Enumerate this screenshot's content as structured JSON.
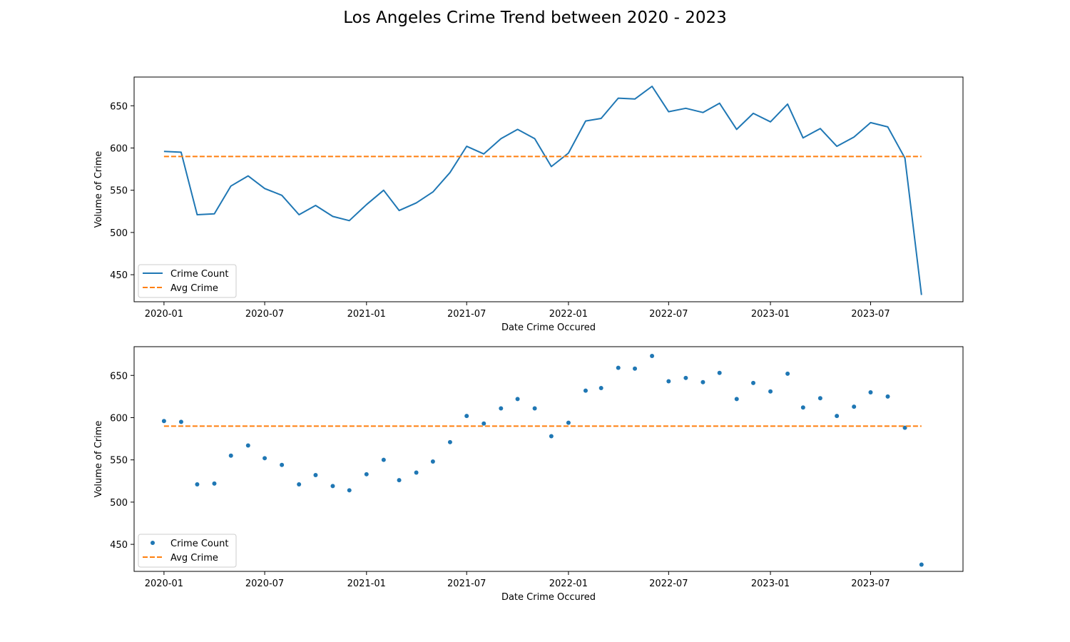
{
  "figure": {
    "title": "Los Angeles Crime Trend between 2020 - 2023"
  },
  "chart_data": [
    {
      "type": "line",
      "xlabel": "Date Crime Occured",
      "ylabel": "Volume of Crime",
      "x_tick_labels": [
        "2020-01",
        "2020-07",
        "2021-01",
        "2021-07",
        "2022-01",
        "2022-07",
        "2023-01",
        "2023-07"
      ],
      "y_ticks": [
        450,
        500,
        550,
        600,
        650
      ],
      "ylim": [
        418,
        684
      ],
      "xlim": [
        "2019-11-08",
        "2023-12-15"
      ],
      "legend": {
        "location": "lower-left",
        "entries": [
          "Crime Count",
          "Avg Crime"
        ]
      },
      "grid": false,
      "colors": {
        "crime_count": "#1f77b4",
        "avg_crime": "#ff7f0e"
      },
      "x": [
        "2020-01",
        "2020-02",
        "2020-03",
        "2020-04",
        "2020-05",
        "2020-06",
        "2020-07",
        "2020-08",
        "2020-09",
        "2020-10",
        "2020-11",
        "2020-12",
        "2021-01",
        "2021-02",
        "2021-03",
        "2021-04",
        "2021-05",
        "2021-06",
        "2021-07",
        "2021-08",
        "2021-09",
        "2021-10",
        "2021-11",
        "2021-12",
        "2022-01",
        "2022-02",
        "2022-03",
        "2022-04",
        "2022-05",
        "2022-06",
        "2022-07",
        "2022-08",
        "2022-09",
        "2022-10",
        "2022-11",
        "2022-12",
        "2023-01",
        "2023-02",
        "2023-03",
        "2023-04",
        "2023-05",
        "2023-06",
        "2023-07",
        "2023-08",
        "2023-09",
        "2023-10"
      ],
      "series": [
        {
          "name": "Crime Count",
          "style": "line",
          "values": [
            596,
            595,
            521,
            522,
            555,
            567,
            552,
            544,
            521,
            532,
            519,
            514,
            533,
            550,
            526,
            535,
            548,
            571,
            602,
            593,
            611,
            622,
            611,
            578,
            594,
            632,
            635,
            659,
            658,
            673,
            643,
            647,
            642,
            653,
            622,
            641,
            631,
            652,
            612,
            623,
            602,
            613,
            630,
            625,
            588,
            426
          ]
        },
        {
          "name": "Avg Crime",
          "style": "dashed",
          "constant": 590
        }
      ]
    },
    {
      "type": "scatter",
      "xlabel": "Date Crime Occured",
      "ylabel": "Volume of Crime",
      "x_tick_labels": [
        "2020-01",
        "2020-07",
        "2021-01",
        "2021-07",
        "2022-01",
        "2022-07",
        "2023-01",
        "2023-07"
      ],
      "y_ticks": [
        450,
        500,
        550,
        600,
        650
      ],
      "ylim": [
        418,
        684
      ],
      "xlim": [
        "2019-11-08",
        "2023-12-15"
      ],
      "legend": {
        "location": "lower-left",
        "entries": [
          "Crime Count",
          "Avg Crime"
        ]
      },
      "grid": false,
      "colors": {
        "crime_count": "#1f77b4",
        "avg_crime": "#ff7f0e"
      },
      "x": [
        "2020-01",
        "2020-02",
        "2020-03",
        "2020-04",
        "2020-05",
        "2020-06",
        "2020-07",
        "2020-08",
        "2020-09",
        "2020-10",
        "2020-11",
        "2020-12",
        "2021-01",
        "2021-02",
        "2021-03",
        "2021-04",
        "2021-05",
        "2021-06",
        "2021-07",
        "2021-08",
        "2021-09",
        "2021-10",
        "2021-11",
        "2021-12",
        "2022-01",
        "2022-02",
        "2022-03",
        "2022-04",
        "2022-05",
        "2022-06",
        "2022-07",
        "2022-08",
        "2022-09",
        "2022-10",
        "2022-11",
        "2022-12",
        "2023-01",
        "2023-02",
        "2023-03",
        "2023-04",
        "2023-05",
        "2023-06",
        "2023-07",
        "2023-08",
        "2023-09",
        "2023-10"
      ],
      "series": [
        {
          "name": "Crime Count",
          "style": "points",
          "values": [
            596,
            595,
            521,
            522,
            555,
            567,
            552,
            544,
            521,
            532,
            519,
            514,
            533,
            550,
            526,
            535,
            548,
            571,
            602,
            593,
            611,
            622,
            611,
            578,
            594,
            632,
            635,
            659,
            658,
            673,
            643,
            647,
            642,
            653,
            622,
            641,
            631,
            652,
            612,
            623,
            602,
            613,
            630,
            625,
            588,
            426
          ]
        },
        {
          "name": "Avg Crime",
          "style": "dashed",
          "constant": 590
        }
      ]
    }
  ]
}
